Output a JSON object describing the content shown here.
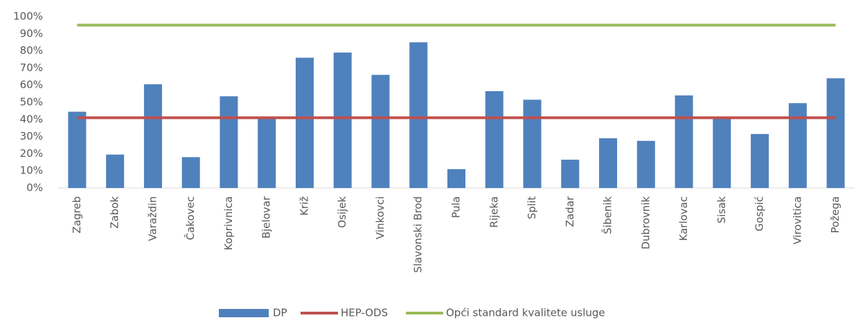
{
  "chart_data": {
    "type": "bar",
    "categories": [
      "Zagreb",
      "Zabok",
      "Varaždin",
      "Čakovec",
      "Koprivnica",
      "Bjelovar",
      "Križ",
      "Osijek",
      "Vinkovci",
      "Slavonski Brod",
      "Pula",
      "Rijeka",
      "Split",
      "Zadar",
      "Šibenik",
      "Dubrovnik",
      "Karlovac",
      "Sisak",
      "Gospić",
      "Virovitica",
      "Požega"
    ],
    "series": [
      {
        "name": "DP",
        "type": "bar",
        "color": "#4f81bd",
        "values": [
          44.5,
          19.5,
          60.5,
          18,
          53.5,
          41.5,
          76,
          79,
          66,
          85,
          11,
          56.5,
          51.5,
          16.5,
          29,
          27.5,
          54,
          41,
          31.5,
          49.5,
          64
        ]
      },
      {
        "name": "HEP-ODS",
        "type": "line",
        "color": "#c0504d",
        "values": [
          41,
          41,
          41,
          41,
          41,
          41,
          41,
          41,
          41,
          41,
          41,
          41,
          41,
          41,
          41,
          41,
          41,
          41,
          41,
          41,
          41
        ]
      },
      {
        "name": "Opći standard kvalitete usluge",
        "type": "line",
        "color": "#9bbb59",
        "values": [
          95,
          95,
          95,
          95,
          95,
          95,
          95,
          95,
          95,
          95,
          95,
          95,
          95,
          95,
          95,
          95,
          95,
          95,
          95,
          95,
          95
        ]
      }
    ],
    "ylim": [
      0,
      100
    ],
    "yticks": [
      {
        "value": 0,
        "label": "0%"
      },
      {
        "value": 10,
        "label": "10%"
      },
      {
        "value": 20,
        "label": "20%"
      },
      {
        "value": 30,
        "label": "30%"
      },
      {
        "value": 40,
        "label": "40%"
      },
      {
        "value": 50,
        "label": "50%"
      },
      {
        "value": 60,
        "label": "60%"
      },
      {
        "value": 70,
        "label": "70%"
      },
      {
        "value": 80,
        "label": "80%"
      },
      {
        "value": 90,
        "label": "90%"
      },
      {
        "value": 100,
        "label": "100%"
      }
    ],
    "grid": false
  }
}
